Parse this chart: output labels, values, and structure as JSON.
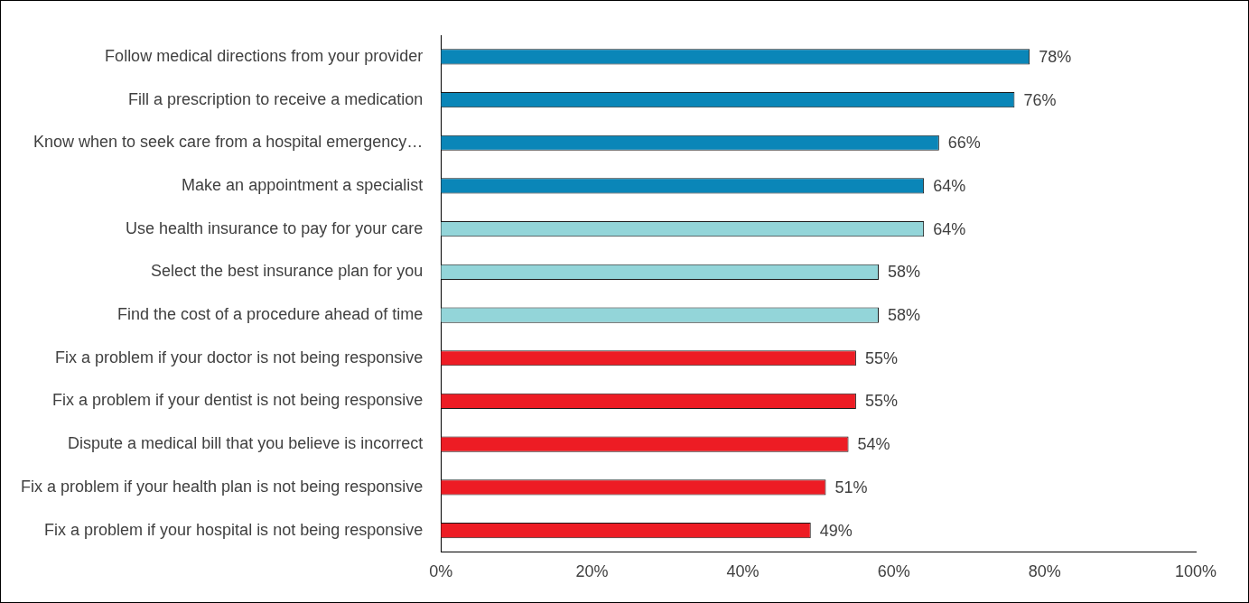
{
  "chart_data": {
    "type": "bar",
    "orientation": "horizontal",
    "categories": [
      "Follow medical directions from your provider",
      "Fill a prescription to receive a medication",
      "Know when to seek care from a hospital emergency…",
      "Make an appointment a specialist",
      "Use health insurance to pay for your care",
      "Select the best insurance plan for you",
      "Find the cost of a procedure ahead of time",
      "Fix a problem if your doctor is not being responsive",
      "Fix a problem if your dentist is not being responsive",
      "Dispute a medical bill that you believe is incorrect",
      "Fix a problem if your health plan is not being responsive",
      "Fix a problem if your hospital is not being responsive"
    ],
    "values": [
      78,
      76,
      66,
      64,
      64,
      58,
      58,
      55,
      55,
      54,
      51,
      49
    ],
    "value_labels": [
      "78%",
      "76%",
      "66%",
      "64%",
      "64%",
      "58%",
      "58%",
      "55%",
      "55%",
      "54%",
      "51%",
      "49%"
    ],
    "colors": [
      "#0a86b8",
      "#0a86b8",
      "#0a86b8",
      "#0a86b8",
      "#93d5d9",
      "#93d5d9",
      "#93d5d9",
      "#ed1c24",
      "#ed1c24",
      "#ed1c24",
      "#ed1c24",
      "#ed1c24"
    ],
    "xlim": [
      0,
      100
    ],
    "xticks": [
      {
        "value": 0,
        "label": "0%"
      },
      {
        "value": 20,
        "label": "20%"
      },
      {
        "value": 40,
        "label": "40%"
      },
      {
        "value": 60,
        "label": "60%"
      },
      {
        "value": 80,
        "label": "80%"
      },
      {
        "value": 100,
        "label": "100%"
      }
    ],
    "grid": false,
    "legend": false
  }
}
